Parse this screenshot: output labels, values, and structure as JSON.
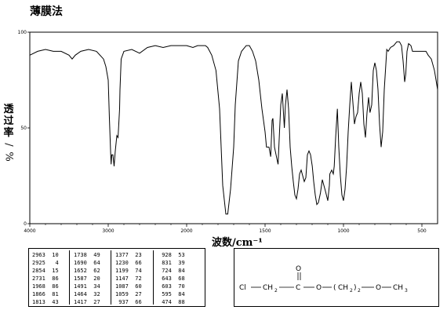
{
  "title": "薄膜法",
  "chart_data": {
    "type": "line",
    "title": "薄膜法",
    "xlabel": "波数/cm⁻¹",
    "ylabel": "透过率/%",
    "xlim": [
      4000,
      400
    ],
    "ylim": [
      0,
      100
    ],
    "x_ticks": [
      "4000",
      "3000",
      "2000",
      "1500",
      "1000",
      "500"
    ],
    "y_ticks": [
      "100",
      "50",
      "0"
    ],
    "grid": false,
    "series": [
      {
        "points": [
          [
            4000,
            88
          ],
          [
            3900,
            90
          ],
          [
            3800,
            91
          ],
          [
            3700,
            90
          ],
          [
            3600,
            90
          ],
          [
            3500,
            88
          ],
          [
            3460,
            86
          ],
          [
            3420,
            88
          ],
          [
            3350,
            90
          ],
          [
            3250,
            91
          ],
          [
            3150,
            90
          ],
          [
            3060,
            86
          ],
          [
            3030,
            82
          ],
          [
            3000,
            75
          ],
          [
            2985,
            55
          ],
          [
            2970,
            38
          ],
          [
            2963,
            31
          ],
          [
            2955,
            36
          ],
          [
            2940,
            36
          ],
          [
            2925,
            30
          ],
          [
            2910,
            38
          ],
          [
            2890,
            46
          ],
          [
            2875,
            45
          ],
          [
            2868,
            50
          ],
          [
            2855,
            60
          ],
          [
            2850,
            70
          ],
          [
            2835,
            86
          ],
          [
            2800,
            90
          ],
          [
            2700,
            91
          ],
          [
            2600,
            89
          ],
          [
            2500,
            92
          ],
          [
            2400,
            93
          ],
          [
            2300,
            92
          ],
          [
            2200,
            93
          ],
          [
            2100,
            93
          ],
          [
            2000,
            93
          ],
          [
            1960,
            92
          ],
          [
            1930,
            93
          ],
          [
            1900,
            93
          ],
          [
            1880,
            93
          ],
          [
            1866,
            92
          ],
          [
            1840,
            88
          ],
          [
            1813,
            80
          ],
          [
            1790,
            60
          ],
          [
            1770,
            20
          ],
          [
            1750,
            5
          ],
          [
            1738,
            5
          ],
          [
            1720,
            18
          ],
          [
            1700,
            40
          ],
          [
            1690,
            62
          ],
          [
            1670,
            85
          ],
          [
            1650,
            90
          ],
          [
            1620,
            93
          ],
          [
            1600,
            93
          ],
          [
            1580,
            90
          ],
          [
            1560,
            85
          ],
          [
            1540,
            75
          ],
          [
            1520,
            60
          ],
          [
            1500,
            48
          ],
          [
            1491,
            40
          ],
          [
            1475,
            40
          ],
          [
            1464,
            35
          ],
          [
            1455,
            54
          ],
          [
            1450,
            55
          ],
          [
            1440,
            40
          ],
          [
            1430,
            36
          ],
          [
            1417,
            31
          ],
          [
            1410,
            44
          ],
          [
            1400,
            62
          ],
          [
            1390,
            68
          ],
          [
            1377,
            50
          ],
          [
            1370,
            62
          ],
          [
            1360,
            70
          ],
          [
            1350,
            60
          ],
          [
            1340,
            40
          ],
          [
            1330,
            30
          ],
          [
            1320,
            22
          ],
          [
            1310,
            15
          ],
          [
            1300,
            13
          ],
          [
            1290,
            18
          ],
          [
            1280,
            26
          ],
          [
            1270,
            28
          ],
          [
            1260,
            25
          ],
          [
            1250,
            22
          ],
          [
            1240,
            24
          ],
          [
            1230,
            36
          ],
          [
            1220,
            38
          ],
          [
            1210,
            36
          ],
          [
            1199,
            30
          ],
          [
            1190,
            22
          ],
          [
            1180,
            15
          ],
          [
            1170,
            10
          ],
          [
            1160,
            11
          ],
          [
            1147,
            16
          ],
          [
            1135,
            23
          ],
          [
            1125,
            20
          ],
          [
            1115,
            17
          ],
          [
            1100,
            12
          ],
          [
            1090,
            20
          ],
          [
            1087,
            26
          ],
          [
            1075,
            28
          ],
          [
            1065,
            26
          ],
          [
            1059,
            30
          ],
          [
            1050,
            45
          ],
          [
            1039,
            60
          ],
          [
            1030,
            40
          ],
          [
            1020,
            25
          ],
          [
            1010,
            15
          ],
          [
            1000,
            12
          ],
          [
            990,
            18
          ],
          [
            980,
            30
          ],
          [
            970,
            48
          ],
          [
            960,
            62
          ],
          [
            950,
            74
          ],
          [
            937,
            60
          ],
          [
            930,
            52
          ],
          [
            928,
            53
          ],
          [
            920,
            56
          ],
          [
            910,
            58
          ],
          [
            900,
            68
          ],
          [
            890,
            74
          ],
          [
            880,
            68
          ],
          [
            870,
            52
          ],
          [
            860,
            45
          ],
          [
            850,
            58
          ],
          [
            840,
            66
          ],
          [
            831,
            58
          ],
          [
            820,
            62
          ],
          [
            810,
            80
          ],
          [
            800,
            84
          ],
          [
            790,
            80
          ],
          [
            780,
            70
          ],
          [
            770,
            52
          ],
          [
            760,
            40
          ],
          [
            750,
            48
          ],
          [
            740,
            70
          ],
          [
            724,
            91
          ],
          [
            715,
            90
          ],
          [
            700,
            92
          ],
          [
            680,
            93
          ],
          [
            660,
            95
          ],
          [
            643,
            95
          ],
          [
            630,
            93
          ],
          [
            620,
            85
          ],
          [
            610,
            74
          ],
          [
            603,
            78
          ],
          [
            595,
            90
          ],
          [
            585,
            94
          ],
          [
            570,
            93
          ],
          [
            560,
            90
          ],
          [
            540,
            90
          ],
          [
            520,
            90
          ],
          [
            500,
            90
          ],
          [
            474,
            90
          ],
          [
            460,
            88
          ],
          [
            440,
            86
          ],
          [
            420,
            80
          ],
          [
            400,
            70
          ]
        ]
      }
    ],
    "peak_table": [
      {
        "wn": "2963",
        "t": "10"
      },
      {
        "wn": "2925",
        "t": "4"
      },
      {
        "wn": "2854",
        "t": "15"
      },
      {
        "wn": "2731",
        "t": "86"
      },
      {
        "wn": "1968",
        "t": "86"
      },
      {
        "wn": "1866",
        "t": "81"
      },
      {
        "wn": "1813",
        "t": "43"
      },
      {
        "wn": "1738",
        "t": "49"
      },
      {
        "wn": "1690",
        "t": "64"
      },
      {
        "wn": "1652",
        "t": "62"
      },
      {
        "wn": "1587",
        "t": "20"
      },
      {
        "wn": "1491",
        "t": "34"
      },
      {
        "wn": "1464",
        "t": "32"
      },
      {
        "wn": "1417",
        "t": "27"
      },
      {
        "wn": "1377",
        "t": "23"
      },
      {
        "wn": "1230",
        "t": "66"
      },
      {
        "wn": "1199",
        "t": "74"
      },
      {
        "wn": "1147",
        "t": "72"
      },
      {
        "wn": "1087",
        "t": "60"
      },
      {
        "wn": "1059",
        "t": "27"
      },
      {
        "wn": "937",
        "t": "66"
      },
      {
        "wn": "928",
        "t": "53"
      },
      {
        "wn": "831",
        "t": "39"
      },
      {
        "wn": "724",
        "t": "84"
      },
      {
        "wn": "643",
        "t": "68"
      },
      {
        "wn": "603",
        "t": "70"
      },
      {
        "wn": "595",
        "t": "84"
      },
      {
        "wn": "474",
        "t": "88"
      }
    ]
  },
  "structure": {
    "cl": "Cl",
    "ch2_a": "CH",
    "sub2_a": "2",
    "carbonyl_c": "C",
    "carbonyl_o": "O",
    "ester_o": "O",
    "paren_open": "(",
    "ch2_b": "CH",
    "sub2_b": "2",
    "paren_close": ")",
    "repeat": "2",
    "ether_o": "O",
    "ch3": "CH",
    "sub3": "3"
  }
}
